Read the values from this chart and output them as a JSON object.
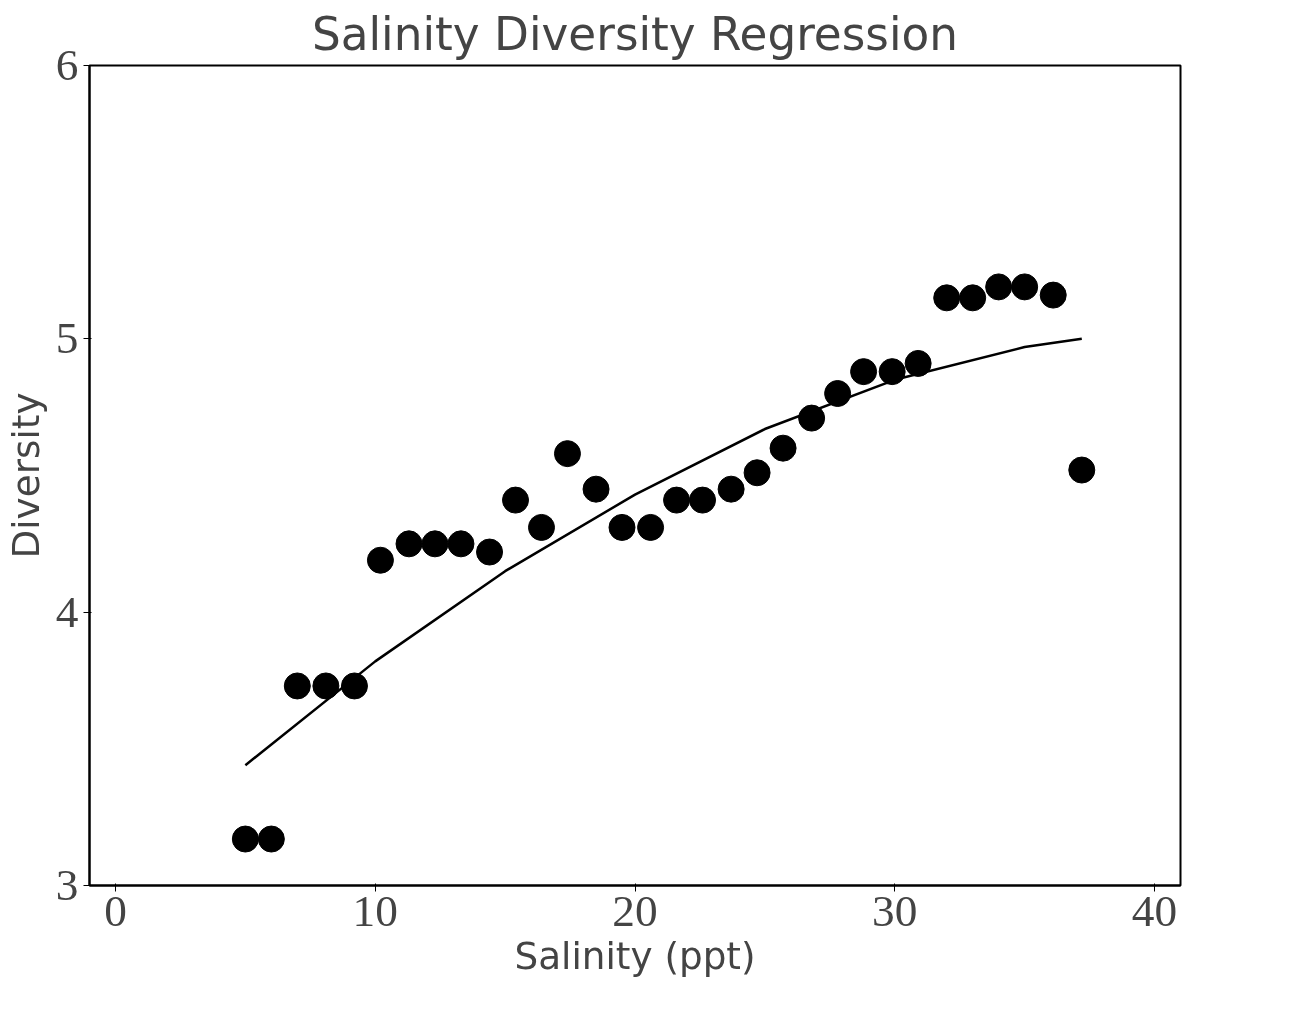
{
  "chart_data": {
    "type": "scatter",
    "title": "Salinity Diversity Regression",
    "xlabel": "Salinity (ppt)",
    "ylabel": "Diversity",
    "xlim": [
      -1,
      41
    ],
    "ylim": [
      3,
      6
    ],
    "xticks": [
      0,
      10,
      20,
      30,
      40
    ],
    "yticks": [
      3,
      4,
      5,
      6
    ],
    "grid": false,
    "series": [
      {
        "color": "#000000",
        "marker": "circle",
        "x": [
          5.0,
          6.0,
          7.0,
          8.1,
          9.2,
          10.2,
          11.3,
          12.3,
          13.3,
          14.4,
          15.4,
          16.4,
          17.4,
          18.5,
          19.5,
          20.6,
          21.6,
          22.6,
          23.7,
          24.7,
          25.7,
          26.8,
          27.8,
          28.8,
          29.9,
          30.9,
          32.0,
          33.0,
          34.0,
          35.0,
          36.1,
          37.2
        ],
        "values": [
          3.17,
          3.17,
          3.73,
          3.73,
          3.73,
          4.19,
          4.25,
          4.25,
          4.25,
          4.22,
          4.41,
          4.31,
          4.58,
          4.45,
          4.31,
          4.31,
          4.41,
          4.41,
          4.45,
          4.51,
          4.6,
          4.71,
          4.8,
          4.88,
          4.88,
          4.91,
          5.15,
          5.15,
          5.19,
          5.19,
          5.16,
          4.52
        ]
      },
      {
        "type": "line",
        "color": "#000000",
        "marker": "none",
        "x": [
          5,
          10,
          15,
          20,
          25,
          30,
          35,
          37.2
        ],
        "values": [
          3.44,
          3.82,
          4.15,
          4.43,
          4.67,
          4.85,
          4.97,
          5.0
        ]
      }
    ]
  }
}
